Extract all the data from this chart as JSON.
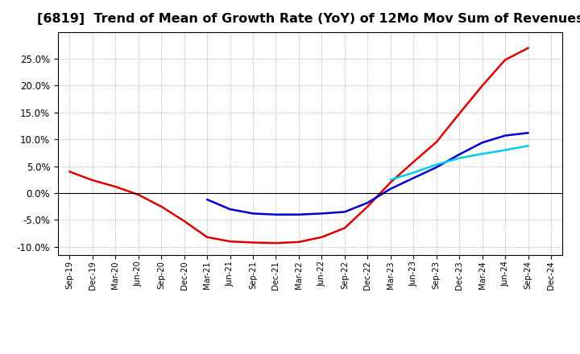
{
  "title": "[6819]  Trend of Mean of Growth Rate (YoY) of 12Mo Mov Sum of Revenues",
  "title_fontsize": 11.5,
  "ylim": [
    -0.115,
    0.3
  ],
  "yticks": [
    -0.1,
    -0.05,
    0.0,
    0.05,
    0.1,
    0.15,
    0.2,
    0.25
  ],
  "background_color": "#ffffff",
  "plot_bg_color": "#ffffff",
  "grid_color": "#999999",
  "line_3y_color": "#dd0000",
  "line_5y_color": "#0000cc",
  "line_7y_color": "#00ccee",
  "line_10y_color": "#007700",
  "line_width": 1.8,
  "x_labels": [
    "Sep-19",
    "Dec-19",
    "Mar-20",
    "Jun-20",
    "Sep-20",
    "Dec-20",
    "Mar-21",
    "Jun-21",
    "Sep-21",
    "Dec-21",
    "Mar-22",
    "Jun-22",
    "Sep-22",
    "Dec-22",
    "Mar-23",
    "Jun-23",
    "Sep-23",
    "Dec-23",
    "Mar-24",
    "Jun-24",
    "Sep-24",
    "Dec-24"
  ],
  "data_3y": [
    0.04,
    0.024,
    0.012,
    -0.003,
    -0.025,
    -0.052,
    -0.082,
    -0.09,
    -0.092,
    -0.093,
    -0.091,
    -0.082,
    -0.065,
    -0.025,
    0.02,
    0.058,
    0.095,
    0.148,
    0.2,
    0.248,
    0.27,
    null
  ],
  "data_5y": [
    null,
    null,
    null,
    null,
    null,
    null,
    -0.012,
    -0.03,
    -0.038,
    -0.04,
    -0.04,
    -0.038,
    -0.035,
    -0.018,
    0.008,
    0.028,
    0.048,
    0.072,
    0.094,
    0.107,
    0.112,
    null
  ],
  "data_7y": [
    null,
    null,
    null,
    null,
    null,
    null,
    null,
    null,
    null,
    null,
    null,
    null,
    null,
    null,
    0.025,
    0.038,
    0.053,
    0.065,
    0.073,
    0.08,
    0.088,
    null
  ],
  "data_10y": [
    null,
    null,
    null,
    null,
    null,
    null,
    null,
    null,
    null,
    null,
    null,
    null,
    null,
    null,
    null,
    null,
    null,
    null,
    null,
    null,
    null,
    null
  ]
}
